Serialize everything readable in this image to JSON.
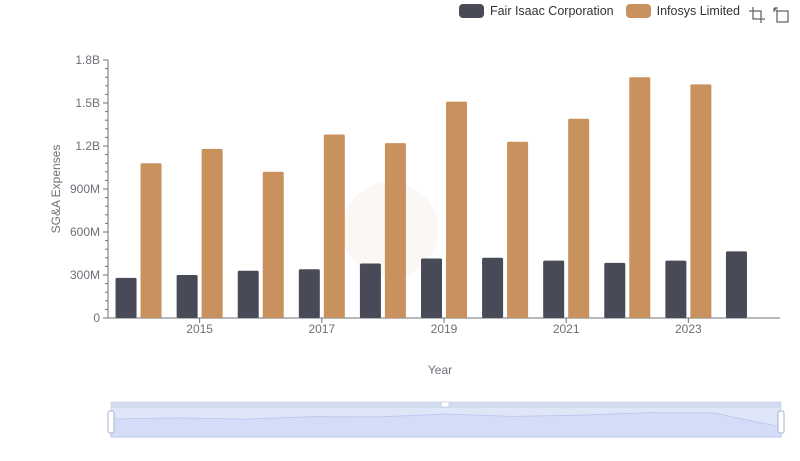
{
  "legend": {
    "items": [
      {
        "label": "Fair Isaac Corporation",
        "color": "#484a57"
      },
      {
        "label": "Infosys Limited",
        "color": "#c9915e"
      }
    ]
  },
  "toolbox": {
    "icons": [
      "zoom-icon",
      "zoom-reset-icon"
    ]
  },
  "chart_data": {
    "type": "bar",
    "xlabel": "Year",
    "ylabel": "SG&A Expenses",
    "x": [
      2014,
      2015,
      2016,
      2017,
      2018,
      2019,
      2020,
      2021,
      2022,
      2023,
      2024
    ],
    "x_tick_labels": [
      "2015",
      "2017",
      "2019",
      "2021",
      "2023"
    ],
    "y_tick_labels": [
      "0",
      "300M",
      "600M",
      "900M",
      "1.2B",
      "1.5B",
      "1.8B"
    ],
    "ylim": [
      0,
      1800000000
    ],
    "grid": false,
    "legend_position": "top-right",
    "series": [
      {
        "name": "Fair Isaac Corporation",
        "color": "#484a57",
        "values": [
          280000000,
          300000000,
          330000000,
          340000000,
          380000000,
          415000000,
          420000000,
          400000000,
          385000000,
          400000000,
          465000000
        ]
      },
      {
        "name": "Infosys Limited",
        "color": "#c9915e",
        "values": [
          1080000000,
          1180000000,
          1020000000,
          1280000000,
          1220000000,
          1510000000,
          1230000000,
          1390000000,
          1680000000,
          1630000000,
          null
        ]
      }
    ],
    "slider": {
      "range": [
        0,
        100
      ]
    }
  }
}
